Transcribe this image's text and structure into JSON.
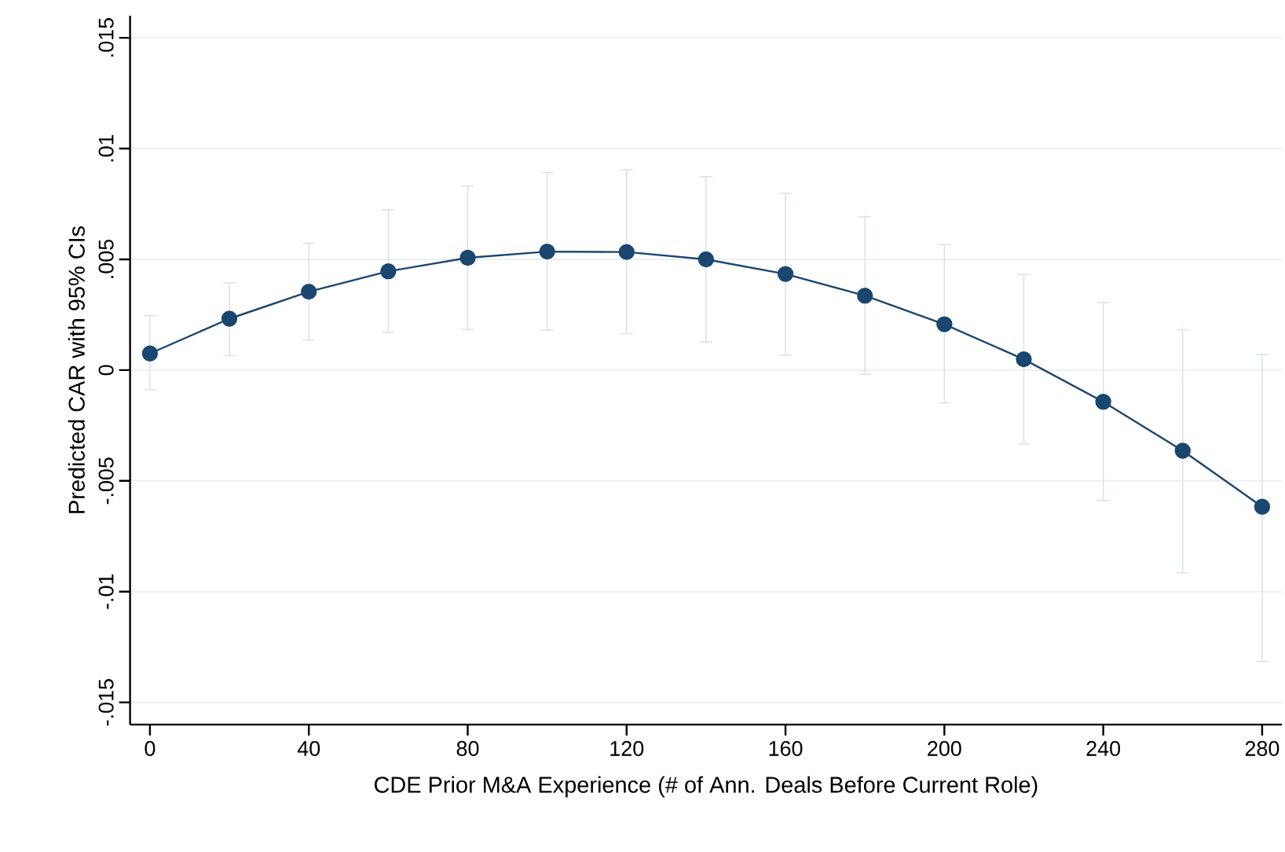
{
  "chart_data": {
    "type": "line",
    "xlabel": "CDE Prior M&A Experience (# of Ann. Deals Before Current Role)",
    "ylabel": "Predicted CAR with 95% CIs",
    "x": [
      0,
      20,
      40,
      60,
      80,
      100,
      120,
      140,
      160,
      180,
      200,
      220,
      240,
      260,
      280
    ],
    "series": [
      {
        "color": "#1a476f",
        "values": [
          0.00075,
          0.00232,
          0.00354,
          0.00446,
          0.00507,
          0.00535,
          0.00533,
          0.005,
          0.00434,
          0.00336,
          0.00207,
          0.00049,
          -0.00143,
          -0.00364,
          -0.00617
        ],
        "errors": [
          [
            -0.00089,
            0.00246
          ],
          [
            0.00066,
            0.00394
          ],
          [
            0.00136,
            0.00573
          ],
          [
            0.00171,
            0.00723
          ],
          [
            0.00183,
            0.00831
          ],
          [
            0.00181,
            0.00892
          ],
          [
            0.00164,
            0.00904
          ],
          [
            0.00127,
            0.00873
          ],
          [
            0.00068,
            0.00798
          ],
          [
            -0.00019,
            0.00692
          ],
          [
            -0.00148,
            0.00566
          ],
          [
            -0.00333,
            0.00432
          ],
          [
            -0.00589,
            0.00305
          ],
          [
            -0.00915,
            0.00183
          ],
          [
            -0.01315,
            0.0007
          ]
        ]
      }
    ],
    "xlim": [
      -5,
      285
    ],
    "ylim": [
      -0.016,
      0.016
    ],
    "xticks": [
      0,
      40,
      80,
      120,
      160,
      200,
      240,
      280
    ],
    "yticks": [
      {
        "value": -0.015,
        "label": "-.015"
      },
      {
        "value": -0.01,
        "label": "-.01"
      },
      {
        "value": -0.005,
        "label": "-.005"
      },
      0,
      {
        "value": 0.005,
        "label": ".005"
      },
      {
        "value": 0.01,
        "label": ".01"
      },
      {
        "value": 0.015,
        "label": ".015"
      }
    ],
    "grid": "y",
    "marker": "circle",
    "line_style": "solid"
  }
}
